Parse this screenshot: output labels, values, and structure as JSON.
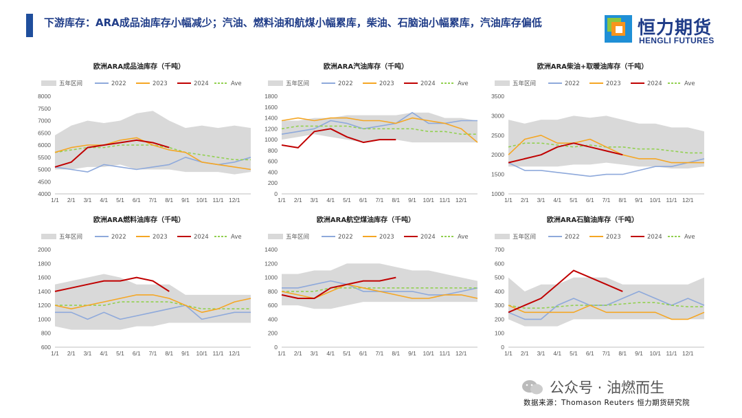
{
  "header": {
    "title": "下游库存：ARA成品油库存小幅减少；汽油、燃料油和航煤小幅累库，柴油、石脑油小幅累库，汽油库存偏低",
    "brand_cn": "恒力期货",
    "brand_en": "HENGLI FUTURES"
  },
  "footer": {
    "watermark": "公众号 · 油燃而生",
    "source": "数据来源：Thomason Reuters 恒力期货研究院"
  },
  "colors": {
    "band": "#d9d9d9",
    "s2022": "#8ea9db",
    "s2023": "#f5a623",
    "s2024": "#c00000",
    "ave": "#92d050",
    "title_blue": "#1f3c88"
  },
  "legend": [
    "五年区间",
    "2022",
    "2023",
    "2024",
    "Ave"
  ],
  "chart_data": [
    {
      "type": "line",
      "title": "欧洲ARA成品油库存（千吨）",
      "x_ticks": [
        "1/1",
        "2/1",
        "3/1",
        "4/1",
        "5/1",
        "6/1",
        "7/1",
        "8/1",
        "9/1",
        "10/1",
        "11/1",
        "12/1"
      ],
      "ylim": [
        4000,
        8000
      ],
      "yticks": [
        4000,
        4500,
        5000,
        5500,
        6000,
        6500,
        7000,
        7500,
        8000
      ],
      "band": {
        "low": [
          5000,
          5000,
          5100,
          5100,
          5200,
          5000,
          5000,
          5000,
          4900,
          4900,
          4900,
          4800,
          4900
        ],
        "high": [
          6400,
          6800,
          7000,
          6900,
          7000,
          7300,
          7400,
          7000,
          6700,
          6800,
          6700,
          6800,
          6700
        ]
      },
      "series": [
        {
          "name": "2022",
          "values": [
            5100,
            5000,
            4900,
            5200,
            5100,
            5000,
            5100,
            5200,
            5500,
            5300,
            5200,
            5300,
            5500
          ]
        },
        {
          "name": "2023",
          "values": [
            5700,
            5900,
            6000,
            6000,
            6200,
            6300,
            6000,
            5800,
            5700,
            5300,
            5200,
            5100,
            5000
          ]
        },
        {
          "name": "2024",
          "values": [
            5100,
            5300,
            5900,
            6000,
            6100,
            6200,
            6100,
            5900
          ]
        },
        {
          "name": "Ave",
          "values": [
            5700,
            5800,
            5900,
            5900,
            6000,
            6000,
            6000,
            5900,
            5700,
            5600,
            5500,
            5400,
            5400
          ]
        }
      ]
    },
    {
      "type": "line",
      "title": "欧洲ARA汽油库存（千吨）",
      "x_ticks": [
        "1/1",
        "2/1",
        "3/1",
        "4/1",
        "5/1",
        "6/1",
        "7/1",
        "8/1",
        "9/1",
        "10/1",
        "11/1",
        "12/1"
      ],
      "ylim": [
        0,
        1800
      ],
      "yticks": [
        0,
        200,
        400,
        600,
        800,
        1000,
        1200,
        1400,
        1600,
        1800
      ],
      "band": {
        "low": [
          1000,
          1050,
          1100,
          1050,
          1000,
          950,
          1000,
          1000,
          950,
          950,
          950,
          950,
          950
        ],
        "high": [
          1350,
          1350,
          1400,
          1400,
          1450,
          1450,
          1450,
          1450,
          1500,
          1500,
          1400,
          1400,
          1350
        ]
      },
      "series": [
        {
          "name": "2022",
          "values": [
            1100,
            1150,
            1200,
            1350,
            1300,
            1200,
            1250,
            1300,
            1500,
            1300,
            1300,
            1350,
            1350
          ]
        },
        {
          "name": "2023",
          "values": [
            1350,
            1400,
            1350,
            1400,
            1400,
            1350,
            1350,
            1300,
            1400,
            1350,
            1300,
            1200,
            950
          ]
        },
        {
          "name": "2024",
          "values": [
            900,
            850,
            1150,
            1200,
            1050,
            950,
            1000,
            1000
          ]
        },
        {
          "name": "Ave",
          "values": [
            1200,
            1250,
            1250,
            1250,
            1250,
            1200,
            1200,
            1200,
            1200,
            1150,
            1150,
            1100,
            1100
          ]
        }
      ]
    },
    {
      "type": "line",
      "title": "欧洲ARA柴油+取暖油库存（千吨）",
      "x_ticks": [
        "1/1",
        "2/1",
        "3/1",
        "4/1",
        "5/1",
        "6/1",
        "7/1",
        "8/1",
        "9/1",
        "10/1",
        "11/1",
        "12/1"
      ],
      "ylim": [
        1000,
        3500
      ],
      "yticks": [
        1000,
        1500,
        2000,
        2500,
        3000,
        3500
      ],
      "band": {
        "low": [
          1700,
          1700,
          1700,
          1700,
          1750,
          1750,
          1800,
          1750,
          1700,
          1700,
          1650,
          1650,
          1700
        ],
        "high": [
          2900,
          2800,
          2900,
          2900,
          3000,
          2950,
          3000,
          2900,
          2800,
          2800,
          2700,
          2700,
          2600
        ]
      },
      "series": [
        {
          "name": "2022",
          "values": [
            1800,
            1600,
            1600,
            1550,
            1500,
            1450,
            1500,
            1500,
            1600,
            1700,
            1700,
            1800,
            1900
          ]
        },
        {
          "name": "2023",
          "values": [
            2000,
            2400,
            2500,
            2300,
            2300,
            2400,
            2200,
            2000,
            1900,
            1900,
            1800,
            1800,
            1800
          ]
        },
        {
          "name": "2024",
          "values": [
            1800,
            1900,
            2000,
            2200,
            2300,
            2200,
            2100,
            2000
          ]
        },
        {
          "name": "Ave",
          "values": [
            2200,
            2300,
            2300,
            2250,
            2200,
            2250,
            2200,
            2200,
            2150,
            2150,
            2100,
            2050,
            2050
          ]
        }
      ]
    },
    {
      "type": "line",
      "title": "欧洲ARA燃料油库存（千吨）",
      "x_ticks": [
        "1/1",
        "2/1",
        "3/1",
        "4/1",
        "5/1",
        "6/1",
        "7/1",
        "8/1",
        "9/1",
        "10/1",
        "11/1",
        "12/1"
      ],
      "ylim": [
        600,
        2000
      ],
      "yticks": [
        600,
        800,
        1000,
        1200,
        1400,
        1600,
        1800,
        2000
      ],
      "band": {
        "low": [
          900,
          850,
          850,
          850,
          850,
          900,
          900,
          950,
          950,
          950,
          950,
          950,
          950
        ],
        "high": [
          1500,
          1550,
          1600,
          1650,
          1600,
          1500,
          1500,
          1500,
          1350,
          1350,
          1350,
          1350,
          1350
        ]
      },
      "series": [
        {
          "name": "2022",
          "values": [
            1100,
            1100,
            1000,
            1100,
            1000,
            1050,
            1100,
            1150,
            1200,
            1000,
            1050,
            1100,
            1100
          ]
        },
        {
          "name": "2023",
          "values": [
            1200,
            1150,
            1200,
            1250,
            1300,
            1350,
            1350,
            1300,
            1200,
            1100,
            1150,
            1250,
            1300
          ]
        },
        {
          "name": "2024",
          "values": [
            1400,
            1450,
            1500,
            1550,
            1550,
            1600,
            1550,
            1400
          ]
        },
        {
          "name": "Ave",
          "values": [
            1200,
            1200,
            1200,
            1200,
            1250,
            1250,
            1250,
            1250,
            1200,
            1150,
            1150,
            1150,
            1150
          ]
        }
      ]
    },
    {
      "type": "line",
      "title": "欧洲ARA航空煤油库存（千吨）",
      "x_ticks": [
        "1/1",
        "2/1",
        "3/1",
        "4/1",
        "5/1",
        "6/1",
        "7/1",
        "8/1",
        "9/1",
        "10/1",
        "11/1",
        "12/1"
      ],
      "ylim": [
        0,
        1400
      ],
      "yticks": [
        0,
        200,
        400,
        600,
        800,
        1000,
        1200,
        1400
      ],
      "band": {
        "low": [
          600,
          600,
          550,
          550,
          600,
          650,
          650,
          650,
          650,
          650,
          650,
          650,
          650
        ],
        "high": [
          1050,
          1050,
          1100,
          1100,
          1200,
          1200,
          1200,
          1150,
          1100,
          1100,
          1050,
          1000,
          950
        ]
      },
      "series": [
        {
          "name": "2022",
          "values": [
            850,
            850,
            900,
            950,
            900,
            800,
            800,
            800,
            800,
            750,
            750,
            800,
            850
          ]
        },
        {
          "name": "2023",
          "values": [
            800,
            750,
            700,
            800,
            900,
            850,
            800,
            750,
            700,
            700,
            750,
            750,
            700
          ]
        },
        {
          "name": "2024",
          "values": [
            750,
            700,
            700,
            850,
            900,
            950,
            950,
            1000
          ]
        },
        {
          "name": "Ave",
          "values": [
            800,
            800,
            800,
            850,
            850,
            850,
            850,
            850,
            850,
            850,
            850,
            850,
            850
          ]
        }
      ]
    },
    {
      "type": "line",
      "title": "欧洲ARA石脑油库存（千吨）",
      "x_ticks": [
        "1/1",
        "2/1",
        "3/1",
        "4/1",
        "5/1",
        "6/1",
        "7/1",
        "8/1",
        "9/1",
        "10/1",
        "11/1",
        "12/1"
      ],
      "ylim": [
        0,
        700
      ],
      "yticks": [
        0,
        100,
        200,
        300,
        400,
        500,
        600,
        700
      ],
      "band": {
        "low": [
          200,
          150,
          150,
          150,
          200,
          200,
          200,
          200,
          200,
          200,
          200,
          200,
          200
        ],
        "high": [
          500,
          400,
          450,
          450,
          500,
          500,
          500,
          450,
          450,
          450,
          450,
          450,
          500
        ]
      },
      "series": [
        {
          "name": "2022",
          "values": [
            250,
            200,
            200,
            300,
            350,
            300,
            300,
            350,
            400,
            350,
            300,
            350,
            300
          ]
        },
        {
          "name": "2023",
          "values": [
            300,
            250,
            250,
            250,
            250,
            300,
            250,
            250,
            250,
            250,
            200,
            200,
            250
          ]
        },
        {
          "name": "2024",
          "values": [
            250,
            300,
            350,
            450,
            550,
            500,
            450,
            400
          ]
        },
        {
          "name": "Ave",
          "values": [
            300,
            280,
            280,
            290,
            300,
            300,
            300,
            310,
            320,
            320,
            300,
            290,
            290
          ]
        }
      ]
    }
  ]
}
